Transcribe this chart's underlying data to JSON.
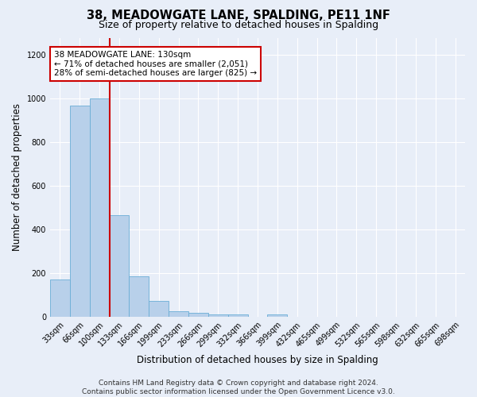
{
  "title": "38, MEADOWGATE LANE, SPALDING, PE11 1NF",
  "subtitle": "Size of property relative to detached houses in Spalding",
  "xlabel": "Distribution of detached houses by size in Spalding",
  "ylabel": "Number of detached properties",
  "bar_labels": [
    "33sqm",
    "66sqm",
    "100sqm",
    "133sqm",
    "166sqm",
    "199sqm",
    "233sqm",
    "266sqm",
    "299sqm",
    "332sqm",
    "366sqm",
    "399sqm",
    "432sqm",
    "465sqm",
    "499sqm",
    "532sqm",
    "565sqm",
    "598sqm",
    "632sqm",
    "665sqm",
    "698sqm"
  ],
  "bar_values": [
    170,
    970,
    1000,
    465,
    185,
    73,
    25,
    17,
    12,
    10,
    0,
    12,
    0,
    0,
    0,
    0,
    0,
    0,
    0,
    0,
    0
  ],
  "bar_color": "#b8d0ea",
  "bar_edgecolor": "#6aaed6",
  "vline_x": 2.5,
  "vline_color": "#cc0000",
  "annotation_text": "38 MEADOWGATE LANE: 130sqm\n← 71% of detached houses are smaller (2,051)\n28% of semi-detached houses are larger (825) →",
  "annotation_box_edgecolor": "#cc0000",
  "annotation_box_facecolor": "#ffffff",
  "ylim": [
    0,
    1280
  ],
  "yticks": [
    0,
    200,
    400,
    600,
    800,
    1000,
    1200
  ],
  "footer_text": "Contains HM Land Registry data © Crown copyright and database right 2024.\nContains public sector information licensed under the Open Government Licence v3.0.",
  "bg_color": "#e8eef8",
  "plot_bg_color": "#e8eef8",
  "grid_color": "#ffffff",
  "title_fontsize": 10.5,
  "subtitle_fontsize": 9,
  "axis_label_fontsize": 8.5,
  "tick_fontsize": 7,
  "footer_fontsize": 6.5,
  "annotation_fontsize": 7.5
}
